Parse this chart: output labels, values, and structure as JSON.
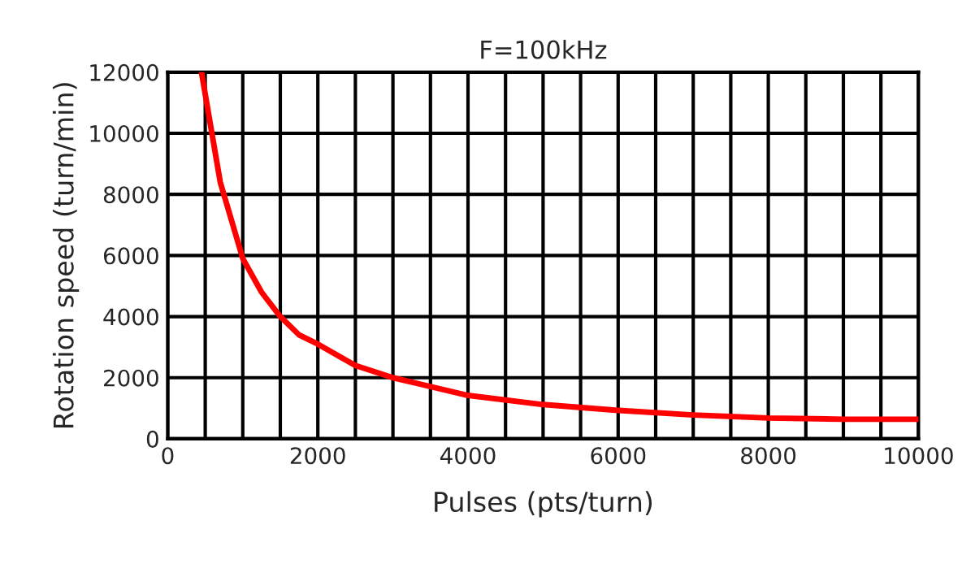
{
  "chart_data": {
    "type": "line",
    "title": "F=100kHz",
    "xlabel": "Pulses (pts/turn)",
    "ylabel": "Rotation speed (turn/min)",
    "x": [
      450,
      700,
      1000,
      1250,
      1500,
      1750,
      2000,
      2500,
      3000,
      4000,
      5000,
      6000,
      7000,
      8000,
      9000,
      10000
    ],
    "series": [
      {
        "color": "#ff0000",
        "values": [
          12000,
          8400,
          5900,
          4800,
          4000,
          3400,
          3100,
          2400,
          2000,
          1420,
          1120,
          930,
          780,
          680,
          640,
          640
        ]
      }
    ],
    "xlim": [
      0,
      10000
    ],
    "ylim": [
      0,
      12000
    ],
    "xticks": [
      0,
      {
        "value": 500,
        "label": null
      },
      2000,
      {
        "value": 1000,
        "label": null
      },
      {
        "value": 1500,
        "label": null
      },
      {
        "value": 2500,
        "label": null
      },
      {
        "value": 3000,
        "label": null
      },
      {
        "value": 3500,
        "label": null
      },
      4000,
      {
        "value": 4500,
        "label": null
      },
      {
        "value": 5000,
        "label": null
      },
      {
        "value": 5500,
        "label": null
      },
      6000,
      {
        "value": 6500,
        "label": null
      },
      {
        "value": 7000,
        "label": null
      },
      {
        "value": 7500,
        "label": null
      },
      8000,
      {
        "value": 8500,
        "label": null
      },
      {
        "value": 9000,
        "label": null
      },
      {
        "value": 9500,
        "label": null
      },
      10000
    ],
    "yticks": [
      0,
      2000,
      4000,
      6000,
      8000,
      10000,
      12000
    ],
    "grid": true,
    "marker": "none",
    "line_style": "solid",
    "legend": false
  }
}
